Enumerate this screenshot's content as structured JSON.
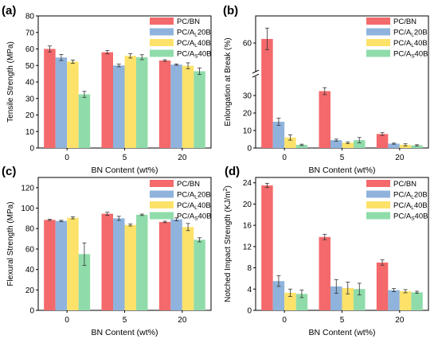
{
  "colors": {
    "PC/BN": "#f4696b",
    "PC/AL20B": "#8fb3dc",
    "PC/AL40B": "#fde26a",
    "PC/AS40B": "#8fdcaa"
  },
  "legend": [
    {
      "key": "PC/BN",
      "base": "PC/BN",
      "sub": ""
    },
    {
      "key": "PC/AL20B",
      "base": "PC/A",
      "sub": "L",
      "tail": "20B"
    },
    {
      "key": "PC/AL40B",
      "base": "PC/A",
      "sub": "L",
      "tail": "40B"
    },
    {
      "key": "PC/AS40B",
      "base": "PC/A",
      "sub": "S",
      "tail": "40B"
    }
  ],
  "chart_data": [
    {
      "panel": "(a)",
      "type": "bar",
      "categories": [
        "0",
        "5",
        "20"
      ],
      "xlabel": "BN Content (wt%)",
      "ylabel": "Tensile Strength (MPa)",
      "ylim": [
        0,
        80
      ],
      "yticks": [
        0,
        10,
        20,
        30,
        40,
        50,
        60,
        70,
        80
      ],
      "legend_position": "top-right",
      "series": [
        {
          "key": "PC/BN",
          "values": [
            60.0,
            58.0,
            53.0
          ],
          "errors": [
            1.8,
            1.0,
            0.5
          ]
        },
        {
          "key": "PC/AL20B",
          "values": [
            54.8,
            50.0,
            50.5
          ],
          "errors": [
            1.8,
            0.8,
            0.4
          ]
        },
        {
          "key": "PC/AL40B",
          "values": [
            52.3,
            55.8,
            49.8
          ],
          "errors": [
            1.0,
            1.3,
            1.8
          ]
        },
        {
          "key": "PC/AS40B",
          "values": [
            32.5,
            55.0,
            46.5
          ],
          "errors": [
            1.8,
            1.5,
            2.0
          ]
        }
      ]
    },
    {
      "panel": "(b)",
      "type": "bar",
      "categories": [
        "0",
        "5",
        "20"
      ],
      "xlabel": "BN Content (wt%)",
      "ylabel": "Enlongation at Break (%)",
      "y_break": true,
      "ylim_lower": [
        0,
        40
      ],
      "yticks_lower": [
        0,
        10,
        20,
        30
      ],
      "ylim_upper": [
        40,
        80
      ],
      "yticks_upper": [
        60
      ],
      "legend_position": "top-right",
      "series": [
        {
          "key": "PC/BN",
          "values": [
            63.0,
            32.5,
            8.0
          ],
          "errors": [
            8.0,
            2.0,
            0.8
          ]
        },
        {
          "key": "PC/AL20B",
          "values": [
            15.0,
            4.5,
            2.5
          ],
          "errors": [
            2.0,
            0.6,
            0.3
          ]
        },
        {
          "key": "PC/AL40B",
          "values": [
            6.0,
            3.0,
            1.8
          ],
          "errors": [
            1.5,
            0.5,
            0.6
          ]
        },
        {
          "key": "PC/AS40B",
          "values": [
            1.8,
            4.5,
            1.5
          ],
          "errors": [
            0.4,
            1.5,
            0.4
          ]
        }
      ]
    },
    {
      "panel": "(c)",
      "type": "bar",
      "categories": [
        "0",
        "5",
        "20"
      ],
      "xlabel": "BN Content (wt%)",
      "ylabel": "Flexural Strength (MPa)",
      "ylim": [
        0,
        130
      ],
      "yticks": [
        0,
        20,
        40,
        60,
        80,
        100,
        120
      ],
      "legend_position": "top-right",
      "series": [
        {
          "key": "PC/BN",
          "values": [
            88.5,
            94.5,
            86.5
          ],
          "errors": [
            0.6,
            1.5,
            0.7
          ]
        },
        {
          "key": "PC/AL20B",
          "values": [
            87.5,
            90.0,
            89.0
          ],
          "errors": [
            0.6,
            2.0,
            1.5
          ]
        },
        {
          "key": "PC/AL40B",
          "values": [
            90.5,
            83.5,
            81.5
          ],
          "errors": [
            1.0,
            1.0,
            3.5
          ]
        },
        {
          "key": "PC/AS40B",
          "values": [
            55.0,
            93.5,
            69.0
          ],
          "errors": [
            11.0,
            0.7,
            2.0
          ]
        }
      ]
    },
    {
      "panel": "(d)",
      "type": "bar",
      "categories": [
        "0",
        "5",
        "20"
      ],
      "xlabel": "BN Content (wt%)",
      "ylabel": "Notched Impact Strength (KJ/m",
      "ylabel_sup": "2",
      "ylabel_tail": ")",
      "ylim": [
        0,
        25
      ],
      "yticks": [
        0,
        4,
        8,
        12,
        16,
        20,
        24
      ],
      "legend_position": "top-right",
      "series": [
        {
          "key": "PC/BN",
          "values": [
            23.5,
            13.8,
            9.0
          ],
          "errors": [
            0.4,
            0.5,
            0.5
          ]
        },
        {
          "key": "PC/AL20B",
          "values": [
            5.5,
            4.5,
            3.8
          ],
          "errors": [
            1.0,
            1.3,
            0.3
          ]
        },
        {
          "key": "PC/AL40B",
          "values": [
            3.3,
            4.2,
            3.6
          ],
          "errors": [
            0.7,
            1.1,
            0.3
          ]
        },
        {
          "key": "PC/AS40B",
          "values": [
            3.1,
            4.0,
            3.4
          ],
          "errors": [
            0.7,
            1.1,
            0.2
          ]
        }
      ]
    }
  ]
}
